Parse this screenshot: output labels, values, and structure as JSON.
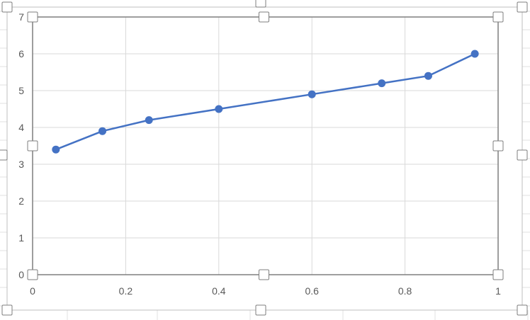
{
  "chart_data": {
    "type": "scatter",
    "mode": "lines+markers",
    "title": "",
    "xlabel": "",
    "ylabel": "",
    "xlim": [
      0,
      1
    ],
    "ylim": [
      0,
      7
    ],
    "x_ticks": [
      "0",
      "0.2",
      "0.4",
      "0.6",
      "0.8",
      "1"
    ],
    "y_ticks": [
      "0",
      "1",
      "2",
      "3",
      "4",
      "5",
      "6",
      "7"
    ],
    "grid": true,
    "legend": "none",
    "series": [
      {
        "color": "#4472C4",
        "points": [
          {
            "x": 0.05,
            "y": 3.4
          },
          {
            "x": 0.15,
            "y": 3.9
          },
          {
            "x": 0.25,
            "y": 4.2
          },
          {
            "x": 0.4,
            "y": 4.5
          },
          {
            "x": 0.6,
            "y": 4.9
          },
          {
            "x": 0.75,
            "y": 5.2
          },
          {
            "x": 0.85,
            "y": 5.4
          },
          {
            "x": 0.95,
            "y": 6.0
          }
        ]
      }
    ]
  },
  "colors": {
    "series": "#4472C4",
    "gridline": "#d9d9d9",
    "axis": "#7f7f7f",
    "frame": "#bfbfbf",
    "sheet_grid": "#e0e0e0",
    "handle_border": "#7f7f7f"
  }
}
